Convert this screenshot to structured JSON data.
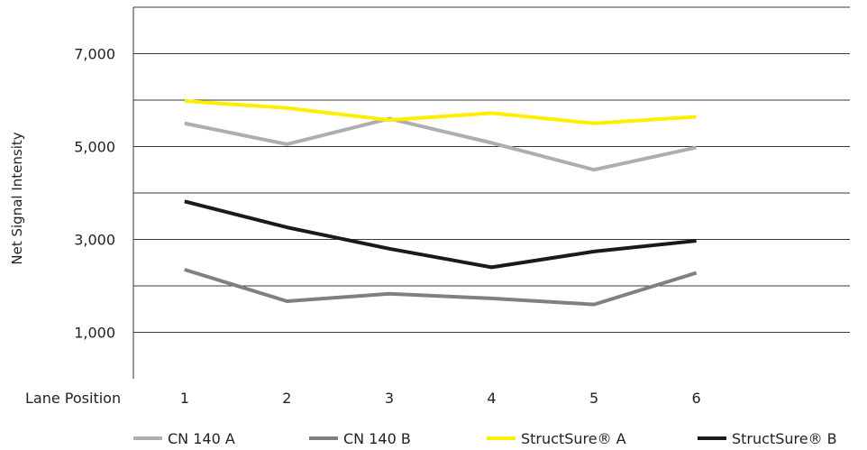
{
  "chart_data": {
    "type": "line",
    "title": "",
    "ylabel": "Net Signal Intensity",
    "xlabel": "Lane Position",
    "x": [
      1,
      2,
      3,
      4,
      5,
      6
    ],
    "x_tick_labels": [
      "1",
      "2",
      "3",
      "4",
      "5",
      "6"
    ],
    "xlim": [
      0.5,
      7.5
    ],
    "ylim": [
      0,
      8000
    ],
    "y_tick_values": [
      1000,
      3000,
      5000,
      7000
    ],
    "y_tick_labels": [
      "1,000",
      "3,000",
      "5,000",
      "7,000"
    ],
    "grid": "horizontal",
    "legend_position": "bottom",
    "series": [
      {
        "name": "CN 140 A",
        "color": "#aeaeae",
        "values": [
          5500,
          5050,
          5600,
          5080,
          4500,
          4980
        ]
      },
      {
        "name": "CN 140 B",
        "color": "#808080",
        "values": [
          2350,
          1670,
          1830,
          1730,
          1600,
          2280
        ]
      },
      {
        "name": "StructSure® A",
        "color": "#ffee00",
        "values": [
          5980,
          5830,
          5570,
          5720,
          5500,
          5640
        ]
      },
      {
        "name": "StructSure® B",
        "color": "#1a1a1a",
        "values": [
          3820,
          3260,
          2800,
          2400,
          2740,
          2970
        ]
      }
    ]
  }
}
